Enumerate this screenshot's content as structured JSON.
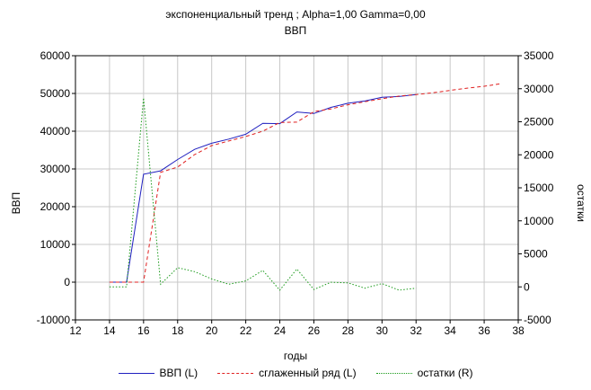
{
  "chart_data": {
    "type": "line",
    "title": "экспоненциальный тренд ; Alpha=1,00 Gamma=0,00",
    "subtitle": "ВВП",
    "xlabel": "годы",
    "ylabel": "ВВП",
    "y2label": "остатки",
    "xlim": [
      12,
      38
    ],
    "ylim": [
      -10000,
      60000
    ],
    "y2lim": [
      -5000,
      35000
    ],
    "xticks": [
      "12",
      "14",
      "16",
      "18",
      "20",
      "22",
      "24",
      "26",
      "28",
      "30",
      "32",
      "34",
      "36",
      "38"
    ],
    "yticks": [
      "-10000",
      "0",
      "10000",
      "20000",
      "30000",
      "40000",
      "50000",
      "60000"
    ],
    "y2ticks": [
      "-5000",
      "0",
      "5000",
      "10000",
      "15000",
      "20000",
      "25000",
      "30000",
      "35000"
    ],
    "grid": true,
    "legend_position": "bottom",
    "series": [
      {
        "name": "ВВП (L)",
        "axis": "left",
        "color": "#1f1fbf",
        "style": "solid",
        "x": [
          14,
          15,
          16,
          17,
          18,
          19,
          20,
          21,
          22,
          23,
          24,
          25,
          26,
          27,
          28,
          29,
          30,
          31,
          32
        ],
        "values": [
          0,
          0,
          28600,
          29500,
          32500,
          35200,
          36800,
          37900,
          39200,
          42100,
          42000,
          45100,
          44700,
          46300,
          47400,
          48000,
          49000,
          49200,
          49700
        ]
      },
      {
        "name": "сглаженный ряд (L)",
        "axis": "left",
        "color": "#e02020",
        "style": "dashed",
        "x": [
          14,
          15,
          16,
          17,
          18,
          19,
          20,
          21,
          22,
          23,
          24,
          25,
          26,
          27,
          28,
          29,
          30,
          31,
          32,
          33,
          34,
          35,
          36,
          37
        ],
        "values": [
          0,
          0,
          0,
          29100,
          30500,
          33800,
          36200,
          37400,
          38600,
          40000,
          42300,
          42400,
          45200,
          45900,
          47000,
          47800,
          48600,
          49300,
          49700,
          50200,
          50800,
          51400,
          51900,
          52600
        ]
      },
      {
        "name": "остатки (R)",
        "axis": "right",
        "color": "#1a9a1a",
        "style": "dotted",
        "x": [
          14,
          15,
          16,
          17,
          18,
          19,
          20,
          21,
          22,
          23,
          24,
          25,
          26,
          27,
          28,
          29,
          30,
          31,
          32
        ],
        "values": [
          0,
          0,
          28600,
          400,
          2900,
          2300,
          1200,
          400,
          900,
          2500,
          -500,
          2700,
          -400,
          700,
          600,
          -200,
          500,
          -500,
          -200
        ]
      }
    ]
  }
}
